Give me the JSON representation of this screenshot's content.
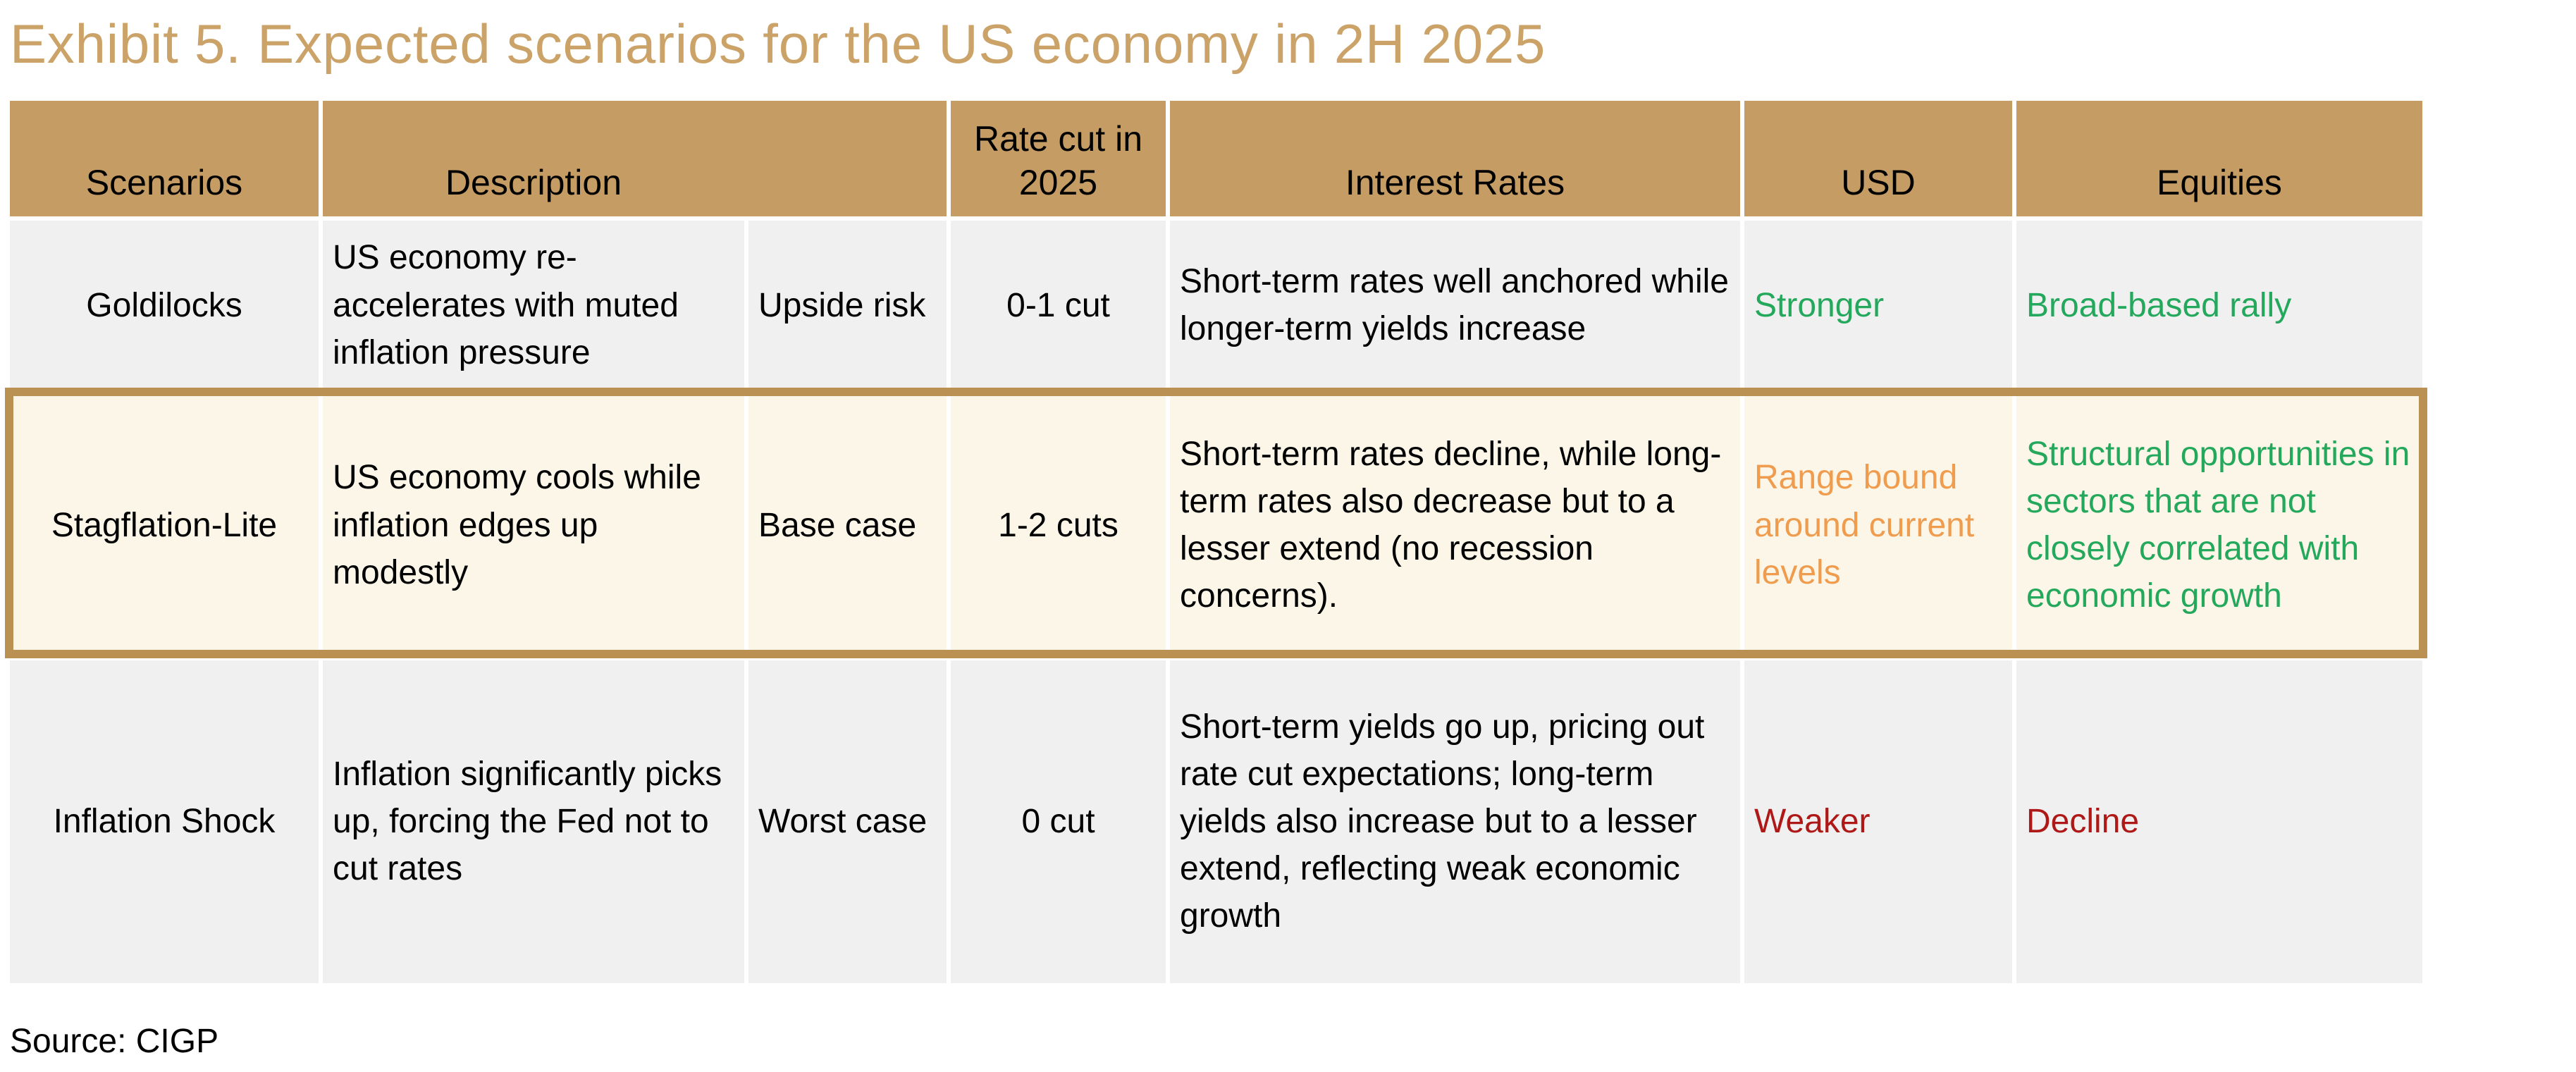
{
  "title": "Exhibit 5. Expected scenarios for the US economy in 2H 2025",
  "source": "Source: CIGP",
  "palette": {
    "title_tan": "#CBA268",
    "header_tan": "#C59C63",
    "highlight_border_tan": "#BA9152",
    "highlight_row_cream": "#FBF6E7",
    "row_gray": "#F0F0F1",
    "positive_green": "#24A85C",
    "neutral_orange": "#F09C4E",
    "negative_red": "#AE1917",
    "text_black": "#000000"
  },
  "table": {
    "headers": {
      "scenarios": "Scenarios",
      "description": "Description",
      "rate_cut": "Rate cut in 2025",
      "interest_rates": "Interest Rates",
      "usd": "USD",
      "equities": "Equities"
    },
    "rows": [
      {
        "scenario": "Goldilocks",
        "description": "US economy re-accelerates with muted inflation pressure",
        "case": "Upside risk",
        "rate_cut": "0-1 cut",
        "interest_rates": "Short-term rates well anchored while longer-term yields increase",
        "usd": {
          "text": "Stronger",
          "sentiment": "positive"
        },
        "equities": {
          "text": "Broad-based rally",
          "sentiment": "positive"
        },
        "highlighted": false
      },
      {
        "scenario": "Stagflation-Lite",
        "description": "US economy cools while inflation edges up modestly",
        "case": "Base case",
        "rate_cut": "1-2 cuts",
        "interest_rates": "Short-term rates decline, while long-term rates also decrease but to a lesser extend (no recession concerns).",
        "usd": {
          "text": "Range bound around current levels",
          "sentiment": "neutral"
        },
        "equities": {
          "text": "Structural opportunities in sectors that are not closely correlated with economic growth",
          "sentiment": "positive"
        },
        "highlighted": true
      },
      {
        "scenario": "Inflation Shock",
        "description": "Inflation significantly picks up, forcing the Fed not to cut rates",
        "case": "Worst case",
        "rate_cut": "0 cut",
        "interest_rates": "Short-term yields go up, pricing out rate cut expectations; long-term yields also increase but to a lesser extend, reflecting weak economic growth",
        "usd": {
          "text": "Weaker",
          "sentiment": "negative"
        },
        "equities": {
          "text": "Decline",
          "sentiment": "negative"
        },
        "highlighted": false
      }
    ]
  }
}
